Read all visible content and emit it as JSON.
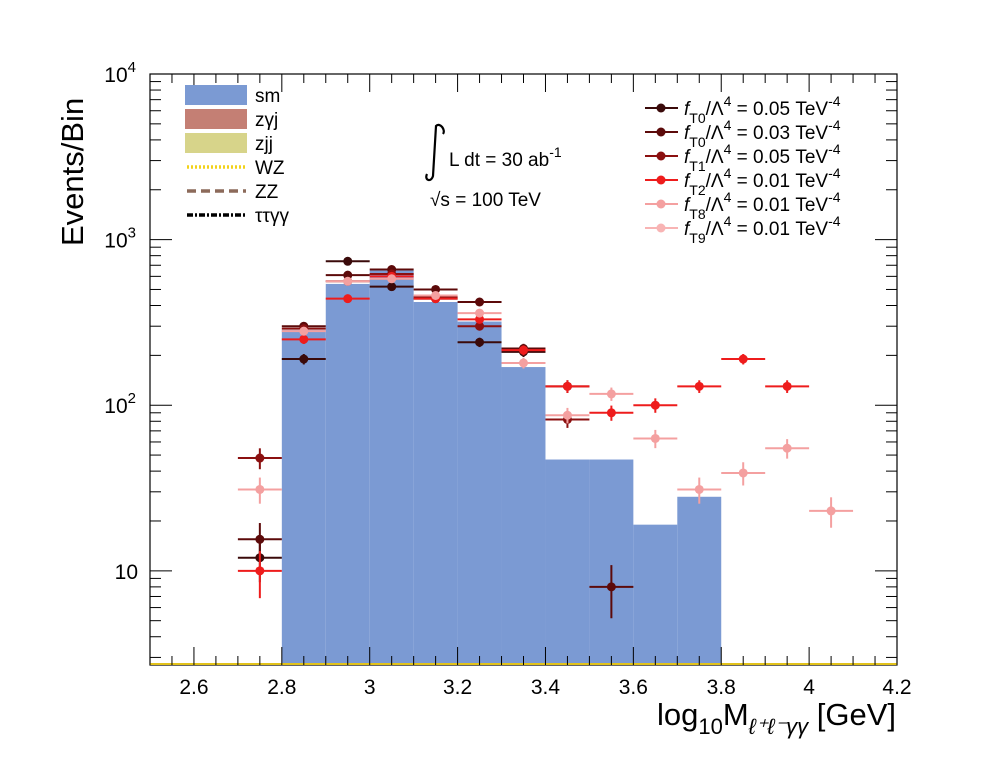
{
  "chart_data": {
    "type": "histogram",
    "ylabel": "Events/Bin",
    "xlabel_parts": {
      "base": "log",
      "base_sub": "10",
      "var": "M",
      "var_sub": "ℓ⁺ℓ⁻γγ",
      "unit": " [GeV]"
    },
    "x_range": [
      2.5,
      4.2
    ],
    "y_range": [
      2.7,
      10000
    ],
    "y_scale": "log",
    "x_ticks": [
      {
        "v": 2.6,
        "label": "2.6"
      },
      {
        "v": 2.8,
        "label": "2.8"
      },
      {
        "v": 3.0,
        "label": "3"
      },
      {
        "v": 3.2,
        "label": "3.2"
      },
      {
        "v": 3.4,
        "label": "3.4"
      },
      {
        "v": 3.6,
        "label": "3.6"
      },
      {
        "v": 3.8,
        "label": "3.8"
      },
      {
        "v": 4.0,
        "label": "4"
      },
      {
        "v": 4.2,
        "label": "4.2"
      }
    ],
    "y_ticks": [
      {
        "v": 10,
        "base": "10",
        "exp": ""
      },
      {
        "v": 100,
        "base": "10",
        "exp": "2"
      },
      {
        "v": 1000,
        "base": "10",
        "exp": "3"
      },
      {
        "v": 10000,
        "base": "10",
        "exp": "4"
      }
    ],
    "lumi": {
      "integral": "L dt = 30 ab",
      "integral_exp": "-1",
      "energy": "√s = 100 TeV"
    },
    "stack": {
      "name": "sm",
      "color": "#7b9ad3",
      "bin_width": 0.1,
      "bins": [
        {
          "x": 2.85,
          "y": 285
        },
        {
          "x": 2.95,
          "y": 540
        },
        {
          "x": 3.05,
          "y": 650
        },
        {
          "x": 3.15,
          "y": 420
        },
        {
          "x": 3.25,
          "y": 320
        },
        {
          "x": 3.35,
          "y": 170
        },
        {
          "x": 3.45,
          "y": 47
        },
        {
          "x": 3.55,
          "y": 47
        },
        {
          "x": 3.65,
          "y": 19
        },
        {
          "x": 3.75,
          "y": 28
        }
      ]
    },
    "background_legend": [
      {
        "name": "sm",
        "style": "fill",
        "color": "#7b9ad3"
      },
      {
        "name": "zγj",
        "style": "fill",
        "color": "#c47f74"
      },
      {
        "name": "zjj",
        "style": "fill",
        "color": "#d7d48a"
      },
      {
        "name": "WZ",
        "style": "dotted",
        "color": "#f2d21a"
      },
      {
        "name": "ZZ",
        "style": "dashed",
        "color": "#8c6a5a"
      },
      {
        "name": "ττγγ",
        "style": "dashdot",
        "color": "#000000"
      }
    ],
    "series": [
      {
        "name_prefix": "f",
        "name_sub": "T0",
        "name_suffix": "/Λ",
        "name_exp": "4",
        "name_value": " = 0.05 TeV",
        "name_value_exp": "-4",
        "color": "#3a0a0a",
        "points": [
          {
            "x": 2.75,
            "y": 12
          },
          {
            "x": 2.85,
            "y": 190
          },
          {
            "x": 2.95,
            "y": 740
          },
          {
            "x": 3.05,
            "y": 520
          },
          {
            "x": 3.15,
            "y": 440
          },
          {
            "x": 3.25,
            "y": 240
          },
          {
            "x": 3.35,
            "y": 210
          }
        ]
      },
      {
        "name_prefix": "f",
        "name_sub": "T0",
        "name_suffix": "/Λ",
        "name_exp": "4",
        "name_value": " = 0.03 TeV",
        "name_value_exp": "-4",
        "color": "#5c0a0a",
        "points": [
          {
            "x": 2.75,
            "y": 15.5
          },
          {
            "x": 2.85,
            "y": 300
          },
          {
            "x": 2.95,
            "y": 610
          },
          {
            "x": 3.05,
            "y": 660
          },
          {
            "x": 3.15,
            "y": 500
          },
          {
            "x": 3.25,
            "y": 420
          },
          {
            "x": 3.35,
            "y": 220
          },
          {
            "x": 3.45,
            "y": 130
          },
          {
            "x": 3.55,
            "y": 8
          }
        ]
      },
      {
        "name_prefix": "f",
        "name_sub": "T1",
        "name_suffix": "/Λ",
        "name_exp": "4",
        "name_value": " = 0.05 TeV",
        "name_value_exp": "-4",
        "color": "#8b1010",
        "points": [
          {
            "x": 2.75,
            "y": 48
          },
          {
            "x": 2.85,
            "y": 290
          },
          {
            "x": 2.95,
            "y": 560
          },
          {
            "x": 3.05,
            "y": 620
          },
          {
            "x": 3.15,
            "y": 450
          },
          {
            "x": 3.25,
            "y": 300
          },
          {
            "x": 3.35,
            "y": 215
          },
          {
            "x": 3.45,
            "y": 82
          }
        ]
      },
      {
        "name_prefix": "f",
        "name_sub": "T2",
        "name_suffix": "/Λ",
        "name_exp": "4",
        "name_value": " = 0.01 TeV",
        "name_value_exp": "-4",
        "color": "#ee1c1c",
        "points": [
          {
            "x": 2.75,
            "y": 10
          },
          {
            "x": 2.85,
            "y": 250
          },
          {
            "x": 2.95,
            "y": 440
          },
          {
            "x": 3.05,
            "y": 600
          },
          {
            "x": 3.15,
            "y": 440
          },
          {
            "x": 3.25,
            "y": 330
          },
          {
            "x": 3.35,
            "y": 215
          },
          {
            "x": 3.45,
            "y": 130
          },
          {
            "x": 3.55,
            "y": 90
          },
          {
            "x": 3.65,
            "y": 100
          },
          {
            "x": 3.75,
            "y": 130
          },
          {
            "x": 3.85,
            "y": 190
          },
          {
            "x": 3.95,
            "y": 130
          }
        ]
      },
      {
        "name_prefix": "f",
        "name_sub": "T8",
        "name_suffix": "/Λ",
        "name_exp": "4",
        "name_value": " = 0.01 TeV",
        "name_value_exp": "-4",
        "color": "#f4a0a0",
        "points": [
          {
            "x": 2.75,
            "y": 31
          },
          {
            "x": 2.85,
            "y": 280
          },
          {
            "x": 2.95,
            "y": 560
          },
          {
            "x": 3.05,
            "y": 580
          },
          {
            "x": 3.15,
            "y": 460
          },
          {
            "x": 3.25,
            "y": 360
          },
          {
            "x": 3.35,
            "y": 180
          },
          {
            "x": 3.45,
            "y": 87
          },
          {
            "x": 3.55,
            "y": 117
          },
          {
            "x": 3.65,
            "y": 63
          },
          {
            "x": 3.75,
            "y": 31
          },
          {
            "x": 3.85,
            "y": 39
          },
          {
            "x": 3.95,
            "y": 55
          },
          {
            "x": 4.05,
            "y": 23
          }
        ]
      },
      {
        "name_prefix": "f",
        "name_sub": "T9",
        "name_suffix": "/Λ",
        "name_exp": "4",
        "name_value": " = 0.01 TeV",
        "name_value_exp": "-4",
        "color": "#f8b4b4",
        "points": []
      }
    ]
  }
}
